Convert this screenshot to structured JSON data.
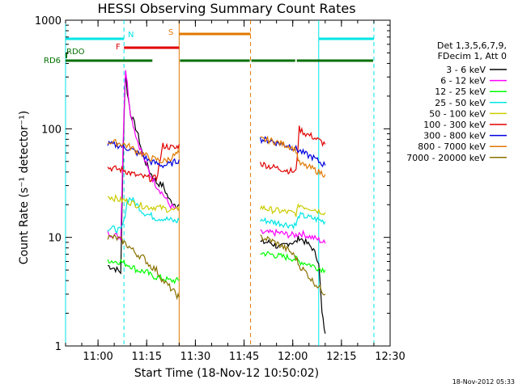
{
  "chart_data": {
    "type": "line",
    "title": "HESSI Observing Summary Count Rates",
    "xlabel": "Start Time (18-Nov-12 10:50:02)",
    "ylabel": "Count Rate (s⁻¹ detector⁻¹)",
    "y_scale": "log",
    "ylim": [
      1,
      1000
    ],
    "xlim": [
      "10:50",
      "12:30"
    ],
    "x_ticks": [
      "11:00",
      "11:15",
      "11:30",
      "11:45",
      "12:00",
      "12:15",
      "12:30"
    ],
    "y_ticks": [
      "1",
      "10",
      "100",
      "1000"
    ],
    "legend_header": [
      "Det 1,3,5,6,7,9,",
      "FDecim 1, Att 0"
    ],
    "legend_position": "right",
    "timestamp": "18-Nov-2012 05:33",
    "colors": {
      "night": "#00e5e5",
      "flare": "#e00000",
      "saa": "#e07800",
      "rd": "#007000"
    },
    "state_bars": [
      {
        "label": "N",
        "color": "#00e5e5",
        "segments": [
          [
            "10:50",
            "11:08"
          ],
          [
            "12:08",
            "12:25"
          ]
        ]
      },
      {
        "label": "S",
        "color": "#e07800",
        "segments": [
          [
            "11:25",
            "11:47"
          ]
        ]
      },
      {
        "label": "F",
        "color": "#e00000",
        "segments": [
          [
            "11:08",
            "11:25"
          ]
        ]
      },
      {
        "label": "RDO",
        "color": "#007000",
        "segments": []
      },
      {
        "label": "RD6",
        "color": "#007000",
        "segments": [
          [
            "10:50",
            "11:17"
          ],
          [
            "11:25",
            "11:47"
          ],
          [
            "11:47",
            "12:01"
          ],
          [
            "12:01",
            "12:25"
          ]
        ]
      }
    ],
    "markers": [
      {
        "time": "10:50",
        "color": "#00e5e5",
        "style": "solid"
      },
      {
        "time": "11:08",
        "color": "#00e5e5",
        "style": "dashed"
      },
      {
        "time": "11:25",
        "color": "#e07800",
        "style": "solid"
      },
      {
        "time": "11:47",
        "color": "#e07800",
        "style": "dashed"
      },
      {
        "time": "12:08",
        "color": "#00e5e5",
        "style": "solid"
      },
      {
        "time": "12:25",
        "color": "#00e5e5",
        "style": "dashed"
      }
    ],
    "series": [
      {
        "name": "3 - 6 keV",
        "color": "#000000",
        "segments": [
          [
            [
              "11:03",
              5.5
            ],
            [
              "11:05",
              5.2
            ],
            [
              "11:07",
              4.8
            ],
            [
              "11:08",
              130
            ],
            [
              "11:08.5",
              330
            ],
            [
              "11:09",
              220
            ],
            [
              "11:10",
              140
            ],
            [
              "11:12",
              95
            ],
            [
              "11:14",
              55
            ],
            [
              "11:16",
              40
            ],
            [
              "11:18",
              32
            ],
            [
              "11:20",
              30
            ],
            [
              "11:22",
              22
            ],
            [
              "11:24",
              20
            ],
            [
              "11:25",
              20
            ]
          ],
          [
            [
              "11:50",
              9
            ],
            [
              "11:53",
              9
            ],
            [
              "11:56",
              8
            ],
            [
              "11:59",
              9
            ],
            [
              "12:01",
              9
            ],
            [
              "12:02",
              10
            ],
            [
              "12:04",
              9
            ],
            [
              "12:06",
              8
            ],
            [
              "12:08",
              6
            ],
            [
              "12:09",
              2
            ],
            [
              "12:10",
              1.3
            ]
          ]
        ]
      },
      {
        "name": "6 - 12 keV",
        "color": "#ff00ff",
        "segments": [
          [
            [
              "11:03",
              11
            ],
            [
              "11:05",
              10.5
            ],
            [
              "11:07",
              10
            ],
            [
              "11:08",
              150
            ],
            [
              "11:08.5",
              360
            ],
            [
              "11:09",
              260
            ],
            [
              "11:10",
              140
            ],
            [
              "11:12",
              80
            ],
            [
              "11:14",
              55
            ],
            [
              "11:16",
              38
            ],
            [
              "11:18",
              30
            ],
            [
              "11:20",
              25
            ],
            [
              "11:22",
              20
            ],
            [
              "11:24",
              18
            ],
            [
              "11:25",
              18
            ]
          ],
          [
            [
              "11:50",
              11
            ],
            [
              "11:53",
              11
            ],
            [
              "11:56",
              11
            ],
            [
              "11:59",
              10.5
            ],
            [
              "12:01",
              10.5
            ],
            [
              "12:02",
              11
            ],
            [
              "12:04",
              10.5
            ],
            [
              "12:06",
              10
            ],
            [
              "12:08",
              9.5
            ],
            [
              "12:10",
              8.8
            ]
          ]
        ]
      },
      {
        "name": "12 - 25 keV",
        "color": "#00ff00",
        "segments": [
          [
            [
              "11:03",
              6.2
            ],
            [
              "11:05",
              6
            ],
            [
              "11:07",
              6
            ],
            [
              "11:08",
              5.8
            ],
            [
              "11:10",
              5.5
            ],
            [
              "11:12",
              5
            ],
            [
              "11:15",
              4.8
            ],
            [
              "11:16",
              4.5
            ],
            [
              "11:18",
              4.3
            ],
            [
              "11:20",
              4.2
            ],
            [
              "11:22",
              4
            ],
            [
              "11:24",
              4
            ],
            [
              "11:25",
              4
            ]
          ],
          [
            [
              "11:50",
              7.2
            ],
            [
              "11:53",
              7
            ],
            [
              "11:56",
              6.7
            ],
            [
              "11:59",
              6.5
            ],
            [
              "12:01",
              6.3
            ],
            [
              "12:02",
              6
            ],
            [
              "12:04",
              5.8
            ],
            [
              "12:06",
              5.5
            ],
            [
              "12:08",
              5.2
            ],
            [
              "12:10",
              5
            ]
          ]
        ]
      },
      {
        "name": "25 - 50 keV",
        "color": "#00e5e5",
        "segments": [
          [
            [
              "11:03",
              12
            ],
            [
              "11:05",
              12
            ],
            [
              "11:07",
              11.5
            ],
            [
              "11:08",
              14
            ],
            [
              "11:09",
              22
            ],
            [
              "11:10",
              23
            ],
            [
              "11:12",
              20
            ],
            [
              "11:14",
              17
            ],
            [
              "11:16",
              16
            ],
            [
              "11:18",
              15
            ],
            [
              "11:20",
              15
            ],
            [
              "11:22",
              14.5
            ],
            [
              "11:24",
              14
            ],
            [
              "11:25",
              14.5
            ]
          ],
          [
            [
              "11:50",
              14.5
            ],
            [
              "11:53",
              14
            ],
            [
              "11:56",
              13.5
            ],
            [
              "11:59",
              13
            ],
            [
              "12:01",
              13
            ],
            [
              "12:02",
              16
            ],
            [
              "12:04",
              15.5
            ],
            [
              "12:06",
              15
            ],
            [
              "12:08",
              14.5
            ],
            [
              "12:10",
              14
            ]
          ]
        ]
      },
      {
        "name": "50 - 100 keV",
        "color": "#cccc00",
        "segments": [
          [
            [
              "11:03",
              24
            ],
            [
              "11:05",
              23
            ],
            [
              "11:07",
              22
            ],
            [
              "11:08",
              22
            ],
            [
              "11:10",
              21
            ],
            [
              "11:12",
              20
            ],
            [
              "11:14",
              19.5
            ],
            [
              "11:16",
              19
            ],
            [
              "11:18",
              19
            ],
            [
              "11:20",
              18.5
            ],
            [
              "11:22",
              18
            ],
            [
              "11:24",
              17.5
            ],
            [
              "11:25",
              19
            ]
          ],
          [
            [
              "11:50",
              19
            ],
            [
              "11:53",
              18
            ],
            [
              "11:56",
              17.5
            ],
            [
              "11:59",
              17
            ],
            [
              "12:01",
              16.5
            ],
            [
              "12:02",
              20
            ],
            [
              "12:04",
              19
            ],
            [
              "12:06",
              18.5
            ],
            [
              "12:08",
              17.5
            ],
            [
              "12:10",
              17
            ]
          ]
        ]
      },
      {
        "name": "100 - 300 keV",
        "color": "#e00000",
        "segments": [
          [
            [
              "11:03",
              44
            ],
            [
              "11:05",
              43
            ],
            [
              "11:07",
              42
            ],
            [
              "11:08",
              42
            ],
            [
              "11:09",
              40
            ],
            [
              "11:10",
              39
            ],
            [
              "11:12",
              37
            ],
            [
              "11:14",
              36
            ],
            [
              "11:16",
              35
            ],
            [
              "11:18",
              35
            ],
            [
              "11:20",
              70
            ],
            [
              "11:22",
              68
            ],
            [
              "11:24",
              66
            ],
            [
              "11:25",
              72
            ]
          ],
          [
            [
              "11:50",
              48
            ],
            [
              "11:53",
              45
            ],
            [
              "11:56",
              43
            ],
            [
              "11:59",
              41
            ],
            [
              "12:01",
              40
            ],
            [
              "12:02",
              100
            ],
            [
              "12:04",
              90
            ],
            [
              "12:06",
              85
            ],
            [
              "12:08",
              78
            ],
            [
              "12:10",
              72
            ]
          ]
        ]
      },
      {
        "name": "300 - 800 keV",
        "color": "#0000e0",
        "segments": [
          [
            [
              "11:03",
              72
            ],
            [
              "11:05",
              71
            ],
            [
              "11:07",
              70
            ],
            [
              "11:08",
              68
            ],
            [
              "11:10",
              65
            ],
            [
              "11:12",
              60
            ],
            [
              "11:14",
              56
            ],
            [
              "11:16",
              50
            ],
            [
              "11:18",
              48
            ],
            [
              "11:20",
              46
            ],
            [
              "11:22",
              47
            ],
            [
              "11:24",
              50
            ],
            [
              "11:25",
              52
            ]
          ],
          [
            [
              "11:50",
              80
            ],
            [
              "11:53",
              78
            ],
            [
              "11:56",
              73
            ],
            [
              "11:59",
              70
            ],
            [
              "12:01",
              65
            ],
            [
              "12:02",
              63
            ],
            [
              "12:04",
              58
            ],
            [
              "12:06",
              55
            ],
            [
              "12:08",
              50
            ],
            [
              "12:10",
              46
            ]
          ]
        ]
      },
      {
        "name": "800 - 7000 keV",
        "color": "#e07800",
        "segments": [
          [
            [
              "11:03",
              76
            ],
            [
              "11:05",
              75
            ],
            [
              "11:07",
              73
            ],
            [
              "11:08",
              72
            ],
            [
              "11:10",
              68
            ],
            [
              "11:12",
              62
            ],
            [
              "11:14",
              58
            ],
            [
              "11:16",
              54
            ],
            [
              "11:18",
              52
            ],
            [
              "11:20",
              50
            ],
            [
              "11:22",
              53
            ],
            [
              "11:24",
              58
            ],
            [
              "11:25",
              60
            ]
          ],
          [
            [
              "11:50",
              80
            ],
            [
              "11:53",
              78
            ],
            [
              "11:56",
              74
            ],
            [
              "11:59",
              69
            ],
            [
              "12:01",
              64
            ],
            [
              "12:02",
              48
            ],
            [
              "12:04",
              45
            ],
            [
              "12:06",
              43
            ],
            [
              "12:08",
              40
            ],
            [
              "12:10",
              38
            ]
          ]
        ]
      },
      {
        "name": "7000 - 20000 keV",
        "color": "#887000",
        "segments": [
          [
            [
              "11:03",
              10
            ],
            [
              "11:05",
              10
            ],
            [
              "11:07",
              9.5
            ],
            [
              "11:08",
              9
            ],
            [
              "11:10",
              8
            ],
            [
              "11:12",
              7
            ],
            [
              "11:14",
              6.5
            ],
            [
              "11:16",
              5.5
            ],
            [
              "11:18",
              5
            ],
            [
              "11:20",
              4
            ],
            [
              "11:22",
              3.5
            ],
            [
              "11:24",
              3
            ],
            [
              "11:25",
              2.8
            ]
          ],
          [
            [
              "11:50",
              10
            ],
            [
              "11:53",
              9.5
            ],
            [
              "11:56",
              8.5
            ],
            [
              "11:59",
              7.5
            ],
            [
              "12:01",
              6.5
            ],
            [
              "12:02",
              5.5
            ],
            [
              "12:04",
              4.8
            ],
            [
              "12:06",
              4
            ],
            [
              "12:08",
              3.5
            ],
            [
              "12:10",
              3
            ]
          ]
        ]
      }
    ]
  }
}
